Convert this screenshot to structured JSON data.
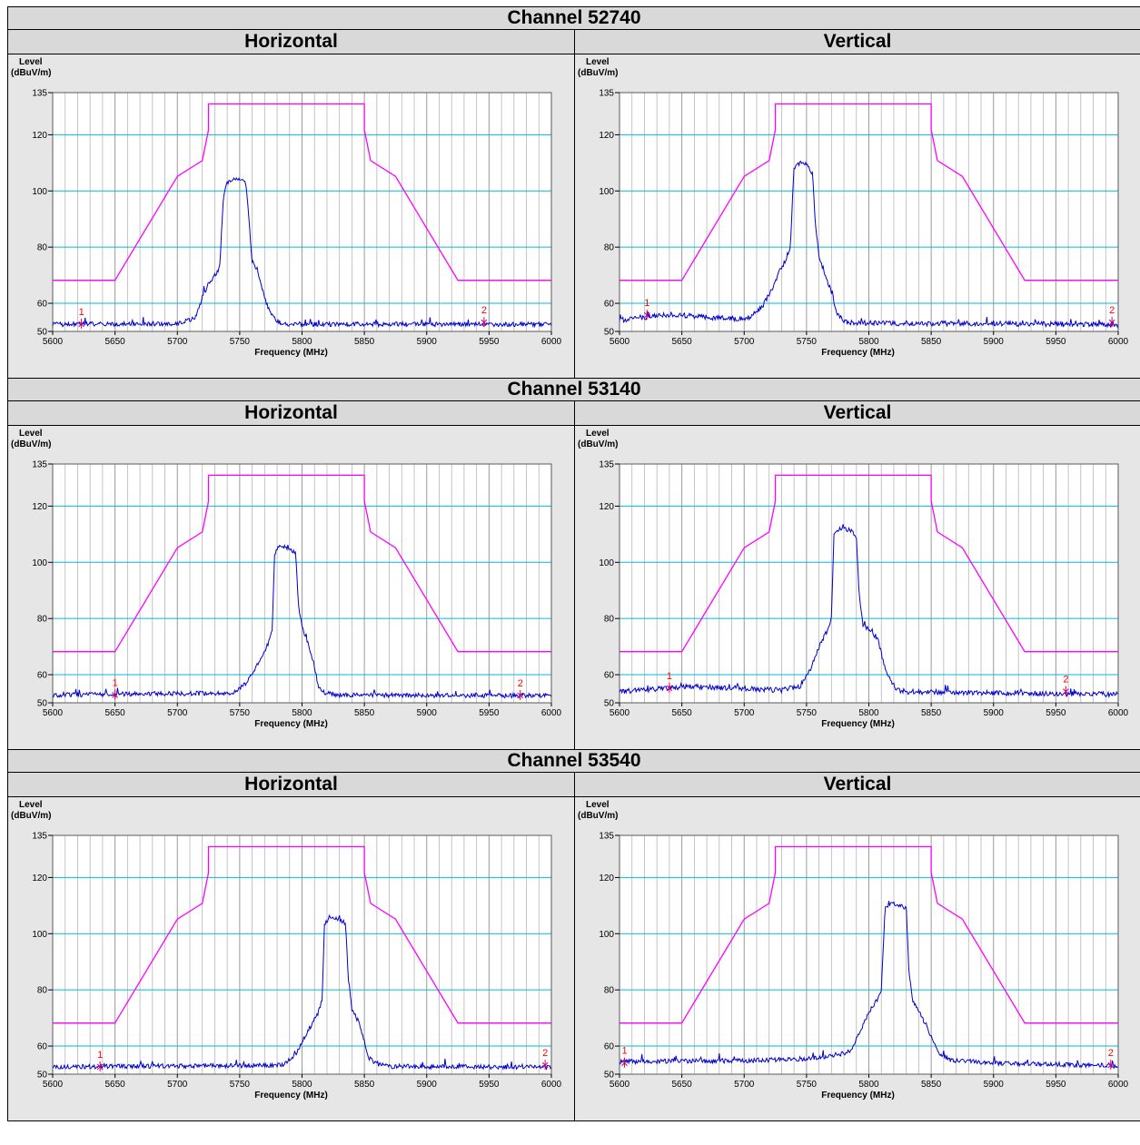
{
  "colors": {
    "limit": "#ff00ff",
    "trace": "#0000cc",
    "grid_major": "#00bcd4",
    "grid_minor": "#b5b5b5",
    "marker": "#ff0000",
    "plot_bg": "#ffffff",
    "frame_bg": "#e6e6e6"
  },
  "sections": [
    {
      "channel_title": "Channel 52740",
      "panels": [
        {
          "pol": "Horizontal",
          "chart_ref": 0
        },
        {
          "pol": "Vertical",
          "chart_ref": 1
        }
      ]
    },
    {
      "channel_title": "Channel 53140",
      "panels": [
        {
          "pol": "Horizontal",
          "chart_ref": 2
        },
        {
          "pol": "Vertical",
          "chart_ref": 3
        }
      ]
    },
    {
      "channel_title": "Channel 53540",
      "panels": [
        {
          "pol": "Horizontal",
          "chart_ref": 4
        },
        {
          "pol": "Vertical",
          "chart_ref": 5
        }
      ]
    }
  ],
  "chart_data": [
    {
      "type": "line",
      "ylabel_line1": "Level",
      "ylabel_line2": "(dBuV/m)",
      "xlabel": "Frequency (MHz)",
      "xlim": [
        5600,
        6000
      ],
      "ylim": [
        50,
        135
      ],
      "xticks": [
        5600,
        5650,
        5700,
        5750,
        5800,
        5850,
        5900,
        5950,
        6000
      ],
      "yticks": [
        50,
        60,
        80,
        100,
        120,
        135
      ],
      "limit_line": {
        "x": [
          5600,
          5650,
          5700,
          5720,
          5725,
          5725,
          5850,
          5850,
          5855,
          5875,
          5925,
          6000
        ],
        "y": [
          68.2,
          68.2,
          105.2,
          110.8,
          121.8,
          131.0,
          131.0,
          121.8,
          110.8,
          105.2,
          68.2,
          68.2
        ]
      },
      "trace": {
        "floor": 52.5,
        "noise": 0.8,
        "points": [
          [
            5600,
            52.5
          ],
          [
            5700,
            52.8
          ],
          [
            5715,
            55
          ],
          [
            5720,
            62
          ],
          [
            5725,
            67
          ],
          [
            5730,
            70
          ],
          [
            5734,
            73
          ],
          [
            5737,
            98
          ],
          [
            5740,
            103
          ],
          [
            5745,
            104
          ],
          [
            5750,
            104
          ],
          [
            5755,
            103
          ],
          [
            5757,
            92
          ],
          [
            5760,
            75
          ],
          [
            5765,
            70
          ],
          [
            5770,
            62
          ],
          [
            5775,
            56
          ],
          [
            5780,
            53.5
          ],
          [
            5790,
            52.6
          ],
          [
            6000,
            52.5
          ]
        ]
      },
      "markers": [
        {
          "label": "1",
          "x": 5623,
          "y": 52.6
        },
        {
          "label": "2",
          "x": 5946,
          "y": 53.2
        }
      ]
    },
    {
      "type": "line",
      "ylabel_line1": "Level",
      "ylabel_line2": "(dBuV/m)",
      "xlabel": "Frequency (MHz)",
      "xlim": [
        5600,
        6000
      ],
      "ylim": [
        50,
        135
      ],
      "xticks": [
        5600,
        5650,
        5700,
        5750,
        5800,
        5850,
        5900,
        5950,
        6000
      ],
      "yticks": [
        50,
        60,
        80,
        100,
        120,
        135
      ],
      "limit_line": {
        "x": [
          5600,
          5650,
          5700,
          5720,
          5725,
          5725,
          5850,
          5850,
          5855,
          5875,
          5925,
          6000
        ],
        "y": [
          68.2,
          68.2,
          105.2,
          110.8,
          121.8,
          131.0,
          131.0,
          121.8,
          110.8,
          105.2,
          68.2,
          68.2
        ]
      },
      "trace": {
        "floor": 53,
        "noise": 0.9,
        "points": [
          [
            5600,
            54
          ],
          [
            5640,
            56
          ],
          [
            5690,
            54.5
          ],
          [
            5705,
            55
          ],
          [
            5715,
            59
          ],
          [
            5722,
            65
          ],
          [
            5728,
            71
          ],
          [
            5733,
            75
          ],
          [
            5737,
            80
          ],
          [
            5740,
            108
          ],
          [
            5745,
            110
          ],
          [
            5750,
            109.5
          ],
          [
            5755,
            106
          ],
          [
            5757,
            88
          ],
          [
            5760,
            77
          ],
          [
            5765,
            70
          ],
          [
            5770,
            64
          ],
          [
            5775,
            56
          ],
          [
            5780,
            53.5
          ],
          [
            5790,
            53
          ],
          [
            6000,
            52.5
          ]
        ]
      },
      "markers": [
        {
          "label": "1",
          "x": 5622,
          "y": 55.8
        },
        {
          "label": "2",
          "x": 5995,
          "y": 53.2
        }
      ]
    },
    {
      "type": "line",
      "ylabel_line1": "Level",
      "ylabel_line2": "(dBuV/m)",
      "xlabel": "Frequency (MHz)",
      "xlim": [
        5600,
        6000
      ],
      "ylim": [
        50,
        135
      ],
      "xticks": [
        5600,
        5650,
        5700,
        5750,
        5800,
        5850,
        5900,
        5950,
        6000
      ],
      "yticks": [
        50,
        60,
        80,
        100,
        120,
        135
      ],
      "limit_line": {
        "x": [
          5600,
          5650,
          5700,
          5720,
          5725,
          5725,
          5850,
          5850,
          5855,
          5875,
          5925,
          6000
        ],
        "y": [
          68.2,
          68.2,
          105.2,
          110.8,
          121.8,
          131.0,
          131.0,
          121.8,
          110.8,
          105.2,
          68.2,
          68.2
        ]
      },
      "trace": {
        "floor": 52.8,
        "noise": 0.8,
        "points": [
          [
            5600,
            52.8
          ],
          [
            5745,
            53.5
          ],
          [
            5755,
            57
          ],
          [
            5762,
            62
          ],
          [
            5768,
            67
          ],
          [
            5773,
            71
          ],
          [
            5776,
            76
          ],
          [
            5778,
            103
          ],
          [
            5782,
            106
          ],
          [
            5790,
            105
          ],
          [
            5795,
            103
          ],
          [
            5797,
            85
          ],
          [
            5800,
            77
          ],
          [
            5805,
            71
          ],
          [
            5810,
            63
          ],
          [
            5813,
            56
          ],
          [
            5818,
            53.5
          ],
          [
            5830,
            52.8
          ],
          [
            6000,
            52.5
          ]
        ]
      },
      "markers": [
        {
          "label": "1",
          "x": 5650,
          "y": 52.8
        },
        {
          "label": "2",
          "x": 5975,
          "y": 52.6
        }
      ]
    },
    {
      "type": "line",
      "ylabel_line1": "Level",
      "ylabel_line2": "(dBuV/m)",
      "xlabel": "Frequency (MHz)",
      "xlim": [
        5600,
        6000
      ],
      "ylim": [
        50,
        135
      ],
      "xticks": [
        5600,
        5650,
        5700,
        5750,
        5800,
        5850,
        5900,
        5950,
        6000
      ],
      "yticks": [
        50,
        60,
        80,
        100,
        120,
        135
      ],
      "limit_line": {
        "x": [
          5600,
          5650,
          5700,
          5720,
          5725,
          5725,
          5850,
          5850,
          5855,
          5875,
          5925,
          6000
        ],
        "y": [
          68.2,
          68.2,
          105.2,
          110.8,
          121.8,
          131.0,
          131.0,
          121.8,
          110.8,
          105.2,
          68.2,
          68.2
        ]
      },
      "trace": {
        "floor": 53.5,
        "noise": 0.9,
        "points": [
          [
            5600,
            54
          ],
          [
            5660,
            55.8
          ],
          [
            5730,
            54.5
          ],
          [
            5745,
            56
          ],
          [
            5752,
            61
          ],
          [
            5757,
            66
          ],
          [
            5762,
            72
          ],
          [
            5767,
            76
          ],
          [
            5770,
            80
          ],
          [
            5772,
            110
          ],
          [
            5777,
            112
          ],
          [
            5785,
            111.5
          ],
          [
            5790,
            109
          ],
          [
            5792,
            90
          ],
          [
            5795,
            78
          ],
          [
            5800,
            76
          ],
          [
            5807,
            73
          ],
          [
            5812,
            64
          ],
          [
            5818,
            57
          ],
          [
            5825,
            54
          ],
          [
            5850,
            53.8
          ],
          [
            6000,
            53
          ]
        ]
      },
      "markers": [
        {
          "label": "1",
          "x": 5640,
          "y": 55.2
        },
        {
          "label": "2",
          "x": 5958,
          "y": 54
        }
      ]
    },
    {
      "type": "line",
      "ylabel_line1": "Level",
      "ylabel_line2": "(dBuV/m)",
      "xlabel": "Frequency (MHz)",
      "xlim": [
        5600,
        6000
      ],
      "ylim": [
        50,
        135
      ],
      "xticks": [
        5600,
        5650,
        5700,
        5750,
        5800,
        5850,
        5900,
        5950,
        6000
      ],
      "yticks": [
        50,
        60,
        80,
        100,
        120,
        135
      ],
      "limit_line": {
        "x": [
          5600,
          5650,
          5700,
          5720,
          5725,
          5725,
          5850,
          5850,
          5855,
          5875,
          5925,
          6000
        ],
        "y": [
          68.2,
          68.2,
          105.2,
          110.8,
          121.8,
          131.0,
          131.0,
          121.8,
          110.8,
          105.2,
          68.2,
          68.2
        ]
      },
      "trace": {
        "floor": 52.6,
        "noise": 0.8,
        "points": [
          [
            5600,
            52.6
          ],
          [
            5785,
            53.2
          ],
          [
            5795,
            57
          ],
          [
            5802,
            63
          ],
          [
            5808,
            68
          ],
          [
            5813,
            72
          ],
          [
            5816,
            76
          ],
          [
            5818,
            103
          ],
          [
            5822,
            106
          ],
          [
            5830,
            105
          ],
          [
            5835,
            103
          ],
          [
            5837,
            85
          ],
          [
            5840,
            73
          ],
          [
            5845,
            69
          ],
          [
            5850,
            62
          ],
          [
            5853,
            56
          ],
          [
            5860,
            53.5
          ],
          [
            5870,
            52.8
          ],
          [
            6000,
            52.4
          ]
        ]
      },
      "markers": [
        {
          "label": "1",
          "x": 5638,
          "y": 52.6
        },
        {
          "label": "2",
          "x": 5995,
          "y": 53.2
        }
      ]
    },
    {
      "type": "line",
      "ylabel_line1": "Level",
      "ylabel_line2": "(dBuV/m)",
      "xlabel": "Frequency (MHz)",
      "xlim": [
        5600,
        6000
      ],
      "ylim": [
        50,
        135
      ],
      "xticks": [
        5600,
        5650,
        5700,
        5750,
        5800,
        5850,
        5900,
        5950,
        6000
      ],
      "yticks": [
        50,
        60,
        80,
        100,
        120,
        135
      ],
      "limit_line": {
        "x": [
          5600,
          5650,
          5700,
          5720,
          5725,
          5725,
          5850,
          5850,
          5855,
          5875,
          5925,
          6000
        ],
        "y": [
          68.2,
          68.2,
          105.2,
          110.8,
          121.8,
          131.0,
          131.0,
          121.8,
          110.8,
          105.2,
          68.2,
          68.2
        ]
      },
      "trace": {
        "floor": 54,
        "noise": 0.8,
        "points": [
          [
            5600,
            54.5
          ],
          [
            5700,
            54.8
          ],
          [
            5750,
            55.5
          ],
          [
            5760,
            56
          ],
          [
            5770,
            56.5
          ],
          [
            5785,
            58
          ],
          [
            5793,
            65
          ],
          [
            5800,
            72
          ],
          [
            5806,
            76
          ],
          [
            5810,
            80
          ],
          [
            5813,
            109
          ],
          [
            5818,
            111
          ],
          [
            5825,
            110
          ],
          [
            5830,
            109
          ],
          [
            5832,
            88
          ],
          [
            5835,
            76
          ],
          [
            5840,
            73
          ],
          [
            5848,
            65
          ],
          [
            5855,
            58
          ],
          [
            5865,
            55
          ],
          [
            5900,
            54
          ],
          [
            6000,
            53
          ]
        ]
      },
      "markers": [
        {
          "label": "1",
          "x": 5604,
          "y": 54
        },
        {
          "label": "2",
          "x": 5994,
          "y": 53.2
        }
      ]
    }
  ]
}
